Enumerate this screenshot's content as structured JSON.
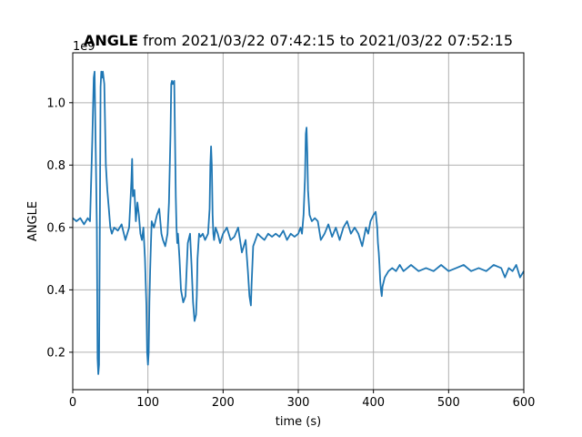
{
  "chart_data": {
    "type": "line",
    "title_bold": "ANGLE",
    "title_rest": " from 2021/03/22 07:42:15 to 2021/03/22 07:52:15",
    "xlabel": "time (s)",
    "ylabel": "ANGLE",
    "y_offset_text": "1e9",
    "xlim": [
      0,
      600
    ],
    "ylim": [
      0.08,
      1.16
    ],
    "x_ticks": [
      0,
      100,
      200,
      300,
      400,
      500,
      600
    ],
    "x_tick_labels": [
      "0",
      "100",
      "200",
      "300",
      "400",
      "500",
      "600"
    ],
    "y_ticks": [
      0.2,
      0.4,
      0.6,
      0.8,
      1.0
    ],
    "y_tick_labels": [
      "0.2",
      "0.4",
      "0.6",
      "0.8",
      "1.0"
    ],
    "grid": true,
    "line_color": "#1f77b4",
    "series": [
      {
        "x": [
          0,
          5,
          10,
          15,
          20,
          23,
          26,
          28,
          29,
          32,
          33,
          34,
          35,
          36,
          37,
          38,
          39,
          40,
          42,
          44,
          46,
          48,
          50,
          52,
          55,
          60,
          65,
          70,
          75,
          77,
          78,
          79,
          80,
          82,
          84,
          86,
          88,
          90,
          92,
          94,
          96,
          98,
          99,
          100,
          101,
          102,
          103,
          104,
          105,
          108,
          112,
          115,
          118,
          120,
          123,
          126,
          128,
          130,
          131,
          132,
          133,
          135,
          137,
          138,
          139,
          140,
          142,
          144,
          147,
          150,
          153,
          156,
          158,
          160,
          162,
          164,
          165,
          166,
          168,
          170,
          173,
          176,
          180,
          182,
          183,
          184,
          185,
          186,
          187,
          188,
          190,
          193,
          196,
          200,
          205,
          210,
          215,
          220,
          225,
          230,
          233,
          235,
          237,
          238,
          240,
          243,
          246,
          250,
          255,
          260,
          265,
          270,
          275,
          280,
          285,
          290,
          295,
          300,
          303,
          305,
          307,
          309,
          310,
          311,
          312,
          313,
          315,
          318,
          322,
          326,
          330,
          335,
          340,
          345,
          350,
          355,
          360,
          365,
          370,
          375,
          380,
          385,
          390,
          393,
          396,
          400,
          403,
          405,
          406,
          407,
          408,
          409,
          410,
          411,
          412,
          415,
          420,
          425,
          430,
          435,
          440,
          445,
          450,
          460,
          470,
          480,
          490,
          500,
          510,
          520,
          530,
          540,
          550,
          560,
          570,
          575,
          580,
          585,
          590,
          595,
          600
        ],
        "y": [
          0.63,
          0.62,
          0.63,
          0.61,
          0.63,
          0.62,
          0.88,
          1.08,
          1.1,
          0.6,
          0.18,
          0.13,
          0.16,
          0.6,
          1.05,
          1.1,
          1.08,
          1.1,
          1.06,
          0.8,
          0.72,
          0.66,
          0.6,
          0.58,
          0.6,
          0.59,
          0.61,
          0.56,
          0.6,
          0.7,
          0.75,
          0.82,
          0.7,
          0.72,
          0.62,
          0.68,
          0.64,
          0.58,
          0.56,
          0.6,
          0.5,
          0.35,
          0.2,
          0.16,
          0.2,
          0.36,
          0.46,
          0.55,
          0.62,
          0.6,
          0.64,
          0.66,
          0.58,
          0.56,
          0.54,
          0.58,
          0.68,
          0.9,
          1.06,
          1.07,
          1.06,
          1.07,
          0.7,
          0.6,
          0.55,
          0.58,
          0.5,
          0.4,
          0.36,
          0.38,
          0.55,
          0.58,
          0.48,
          0.36,
          0.3,
          0.32,
          0.38,
          0.5,
          0.58,
          0.57,
          0.58,
          0.56,
          0.58,
          0.66,
          0.8,
          0.86,
          0.8,
          0.64,
          0.58,
          0.56,
          0.6,
          0.58,
          0.55,
          0.58,
          0.6,
          0.56,
          0.57,
          0.6,
          0.52,
          0.56,
          0.46,
          0.38,
          0.35,
          0.42,
          0.54,
          0.56,
          0.58,
          0.57,
          0.56,
          0.58,
          0.57,
          0.58,
          0.57,
          0.59,
          0.56,
          0.58,
          0.57,
          0.58,
          0.6,
          0.58,
          0.64,
          0.76,
          0.9,
          0.92,
          0.84,
          0.72,
          0.64,
          0.62,
          0.63,
          0.62,
          0.56,
          0.58,
          0.61,
          0.57,
          0.6,
          0.56,
          0.6,
          0.62,
          0.58,
          0.6,
          0.58,
          0.54,
          0.6,
          0.58,
          0.62,
          0.64,
          0.65,
          0.6,
          0.55,
          0.52,
          0.48,
          0.43,
          0.4,
          0.38,
          0.41,
          0.44,
          0.46,
          0.47,
          0.46,
          0.48,
          0.46,
          0.47,
          0.48,
          0.46,
          0.47,
          0.46,
          0.48,
          0.46,
          0.47,
          0.48,
          0.46,
          0.47,
          0.46,
          0.48,
          0.47,
          0.44,
          0.47,
          0.46,
          0.48,
          0.44,
          0.46
        ]
      }
    ]
  }
}
